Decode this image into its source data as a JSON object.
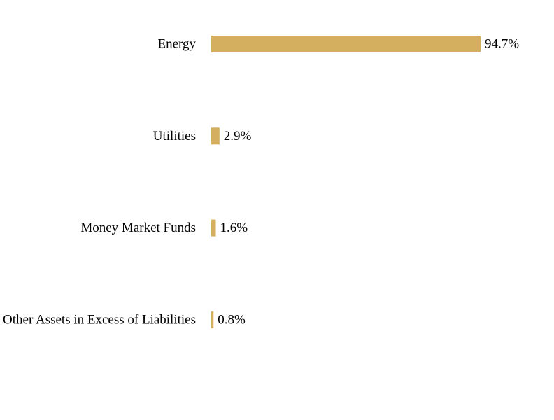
{
  "chart_data": {
    "type": "bar",
    "orientation": "horizontal",
    "categories": [
      "Energy",
      "Utilities",
      "Money Market Funds",
      "Other Assets in Excess of Liabilities"
    ],
    "values": [
      94.7,
      2.9,
      1.6,
      0.8
    ],
    "data_labels": [
      "94.7%",
      "2.9%",
      "1.6%",
      "0.8%"
    ],
    "unit": "%",
    "title": "",
    "xlabel": "",
    "ylabel": "",
    "xlim": [
      0,
      100
    ],
    "grid": false,
    "legend": "none",
    "colors": {
      "bar": "#D4AF5F",
      "text": "#000000",
      "background": "#FFFFFF"
    }
  }
}
